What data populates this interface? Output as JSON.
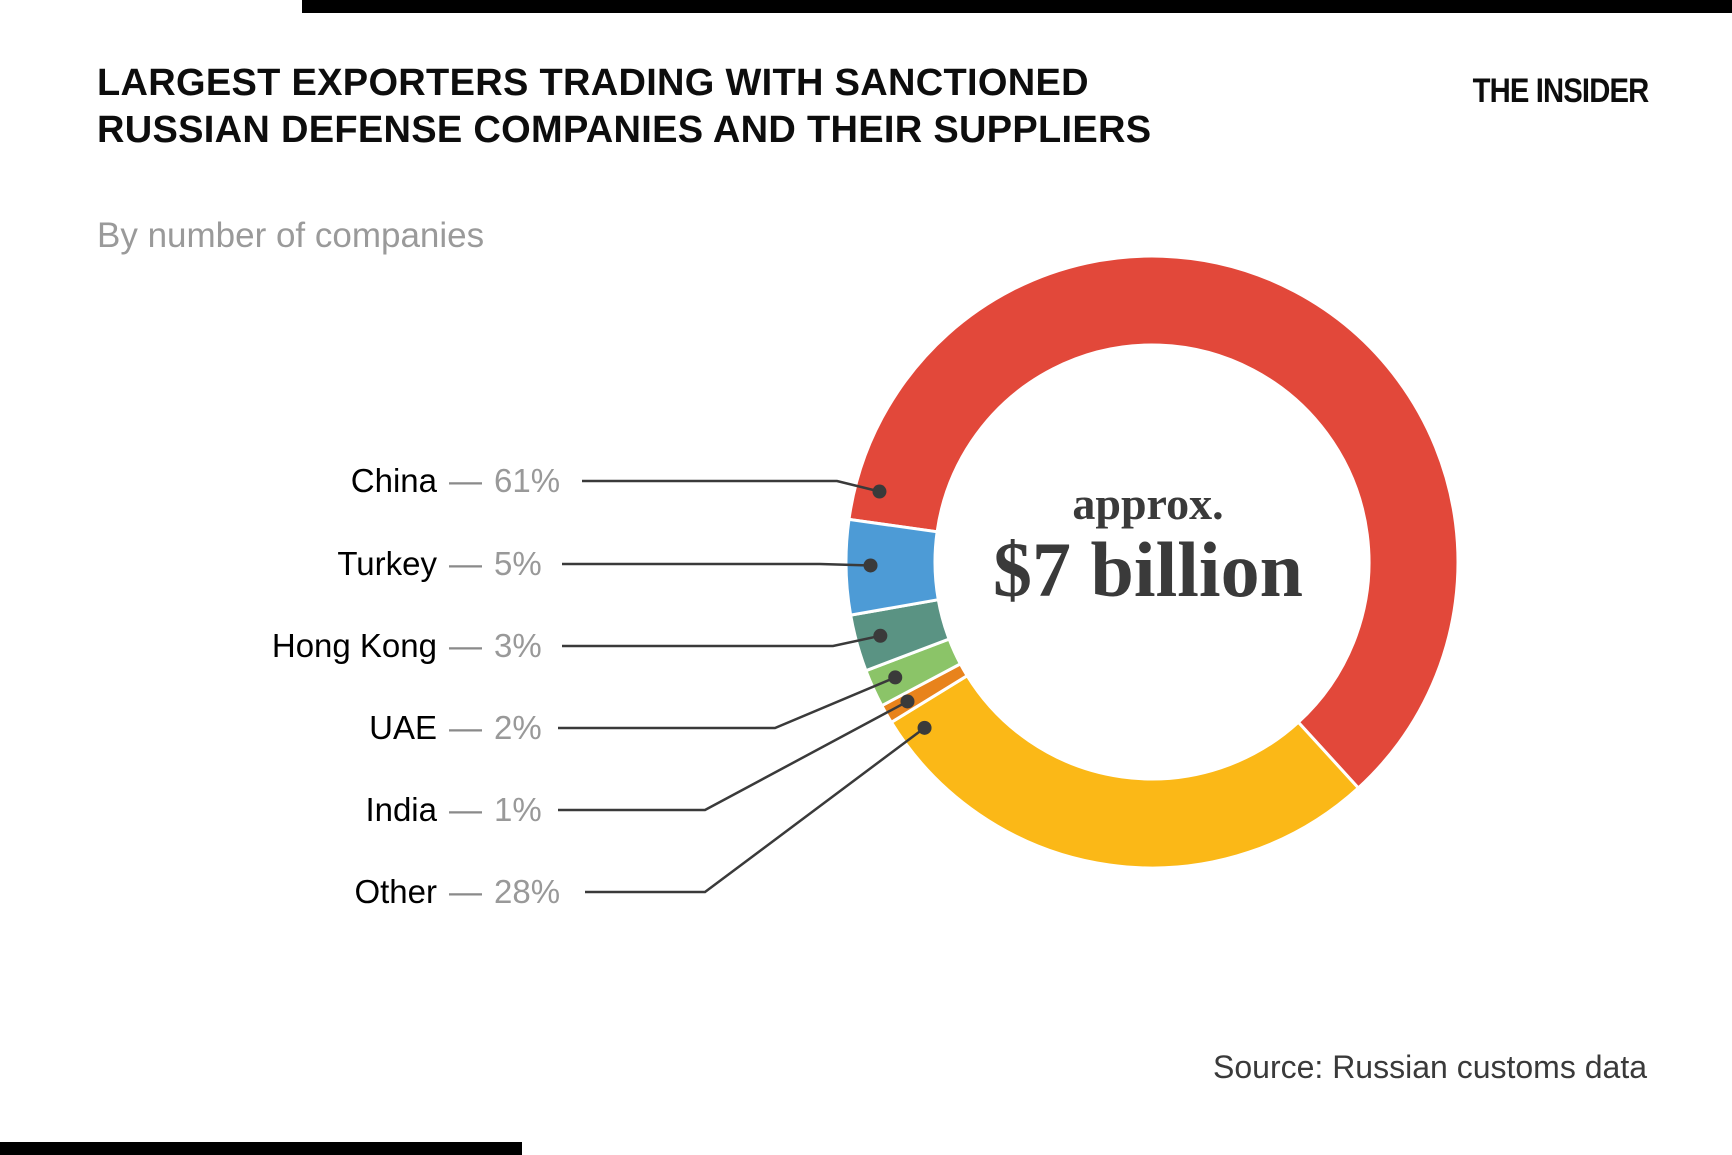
{
  "page": {
    "title_line1": "LARGEST EXPORTERS TRADING WITH SANCTIONED",
    "title_line2": "RUSSIAN DEFENSE COMPANIES AND THEIR SUPPLIERS",
    "subtitle": "By number of companies",
    "brand": "THE INSIDER",
    "source": "Source: Russian customs data",
    "legend_dash": "—"
  },
  "chart_data": {
    "type": "pie",
    "donut": true,
    "title": "LARGEST EXPORTERS TRADING WITH SANCTIONED RUSSIAN DEFENSE COMPANIES AND THEIR SUPPLIERS",
    "subtitle": "By number of companies",
    "unit": "%",
    "center_label_top": "approx.",
    "center_label_main": "$7 billion",
    "legend_position": "left",
    "start_angle_deg_from_top_clockwise": 278,
    "clockwise_order": [
      "China",
      "Other",
      "India",
      "UAE",
      "Hong Kong",
      "Turkey"
    ],
    "segments": [
      {
        "label": "China",
        "value": 61,
        "pct": "61%",
        "color": "#E2483A"
      },
      {
        "label": "Turkey",
        "value": 5,
        "pct": "5%",
        "color": "#4D9BD6"
      },
      {
        "label": "Hong Kong",
        "value": 3,
        "pct": "3%",
        "color": "#5A9383"
      },
      {
        "label": "UAE",
        "value": 2,
        "pct": "2%",
        "color": "#8BC468"
      },
      {
        "label": "India",
        "value": 1,
        "pct": "1%",
        "color": "#E8831C"
      },
      {
        "label": "Other",
        "value": 28,
        "pct": "28%",
        "color": "#FBB817"
      }
    ],
    "colors": {
      "leader_line": "#3a3a3a",
      "separator": "#ffffff",
      "text_dark": "#0d0d0d",
      "text_gray": "#999999"
    }
  }
}
